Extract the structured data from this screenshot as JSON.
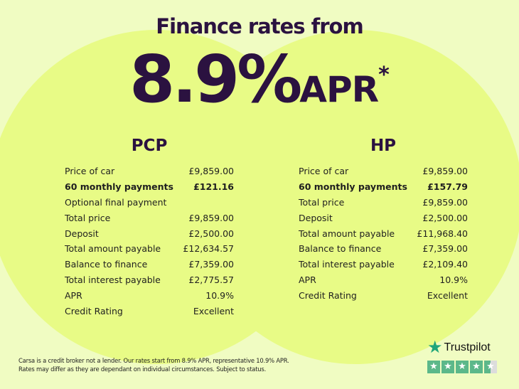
{
  "header": {
    "title": "Finance rates from",
    "rate": "8.9%",
    "apr": "APR",
    "asterisk": "*"
  },
  "colors": {
    "dark_purple": "#2b1240",
    "circle": "#e8fb86",
    "background": "#f0fcc2",
    "trustpilot_green": "#5cb88a"
  },
  "pcp": {
    "heading": "PCP",
    "rows": [
      {
        "label": "Price of car",
        "value": "£9,859.00"
      },
      {
        "label": "60 monthly payments",
        "value": "£121.16",
        "bold": true
      },
      {
        "label": "Optional final payment",
        "value": ""
      },
      {
        "label": "Total price",
        "value": "£9,859.00"
      },
      {
        "label": "Deposit",
        "value": "£2,500.00"
      },
      {
        "label": "Total amount payable",
        "value": "£12,634.57"
      },
      {
        "label": "Balance to finance",
        "value": "£7,359.00"
      },
      {
        "label": "Total interest payable",
        "value": "£2,775.57"
      },
      {
        "label": "APR",
        "value": "10.9%"
      },
      {
        "label": "Credit Rating",
        "value": "Excellent"
      }
    ]
  },
  "hp": {
    "heading": "HP",
    "rows": [
      {
        "label": "Price of car",
        "value": "£9,859.00"
      },
      {
        "label": "60 monthly payments",
        "value": "£157.79",
        "bold": true
      },
      {
        "label": "Total price",
        "value": "£9,859.00"
      },
      {
        "label": "Deposit",
        "value": "£2,500.00"
      },
      {
        "label": "Total amount payable",
        "value": "£11,968.40"
      },
      {
        "label": "Balance to finance",
        "value": "£7,359.00"
      },
      {
        "label": "Total interest payable",
        "value": "£2,109.40"
      },
      {
        "label": "APR",
        "value": "10.9%"
      },
      {
        "label": "Credit Rating",
        "value": "Excellent"
      }
    ]
  },
  "disclaimer": {
    "line1": "Carsa is a credit broker not a lender. Our rates start from 8.9% APR, representative 10.9% APR.",
    "line2": "Rates may differ as they are dependant on individual circumstances. Subject to status."
  },
  "trustpilot": {
    "name": "Trustpilot",
    "rating_stars": 4.5,
    "star_icon": "star-icon"
  }
}
